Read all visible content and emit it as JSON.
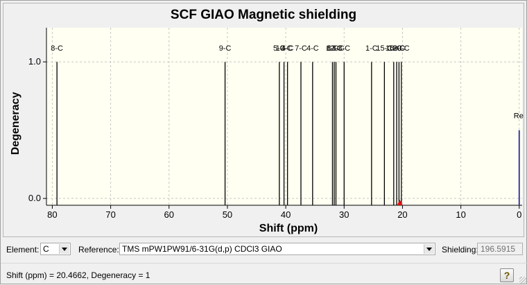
{
  "chart_data": {
    "type": "bar",
    "title": "SCF GIAO Magnetic shielding",
    "xlabel": "Shift (ppm)",
    "ylabel": "Degeneracy",
    "xlim": [
      81,
      -0.5
    ],
    "ylim": [
      -0.05,
      1.25
    ],
    "x_reversed": true,
    "grid": true,
    "x_ticks": [
      "80",
      "70",
      "60",
      "50",
      "40",
      "30",
      "20",
      "10",
      "0"
    ],
    "y_ticks": [
      "0.0",
      "1.0"
    ],
    "peaks": [
      {
        "label": "8-C",
        "x": 79.2,
        "y": 1.0
      },
      {
        "label": "9-C",
        "x": 50.4,
        "y": 1.0
      },
      {
        "label": "5-C",
        "x": 41.1,
        "y": 1.0
      },
      {
        "label": "10-C",
        "x": 40.3,
        "y": 1.0
      },
      {
        "label": "4-C",
        "x": 39.7,
        "y": 1.0
      },
      {
        "label": "7-C",
        "x": 37.4,
        "y": 1.0
      },
      {
        "label": "4-C",
        "x": 35.4,
        "y": 1.0
      },
      {
        "label": "6-C",
        "x": 32.0,
        "y": 1.0
      },
      {
        "label": "12-C",
        "x": 31.7,
        "y": 1.0
      },
      {
        "label": "13-C",
        "x": 31.4,
        "y": 1.0
      },
      {
        "label": "3-C",
        "x": 30.0,
        "y": 1.0
      },
      {
        "label": "1-C",
        "x": 25.3,
        "y": 1.0
      },
      {
        "label": "15-C",
        "x": 23.1,
        "y": 1.0
      },
      {
        "label": "16-C",
        "x": 21.5,
        "y": 1.0
      },
      {
        "label": "18-C",
        "x": 21.0,
        "y": 1.0
      },
      {
        "label": "2-C",
        "x": 20.6,
        "y": 1.0
      },
      {
        "label": "20-C",
        "x": 20.2,
        "y": 1.0
      }
    ],
    "reference": {
      "label": "Re",
      "x": 0.0,
      "y": 0.5,
      "color": "#3a3aa8"
    },
    "marker": {
      "x": 20.4662,
      "color": "#dd1111"
    }
  },
  "controls": {
    "element_label": "Element:",
    "element_value": "C",
    "reference_label": "Reference:",
    "reference_value": "TMS mPW1PW91/6-31G(d,p) CDCl3 GIAO",
    "shielding_label": "Shielding:",
    "shielding_value": "196.5915"
  },
  "status": {
    "text": "Shift (ppm) = 20.4662, Degeneracy = 1",
    "help_icon": "?"
  }
}
